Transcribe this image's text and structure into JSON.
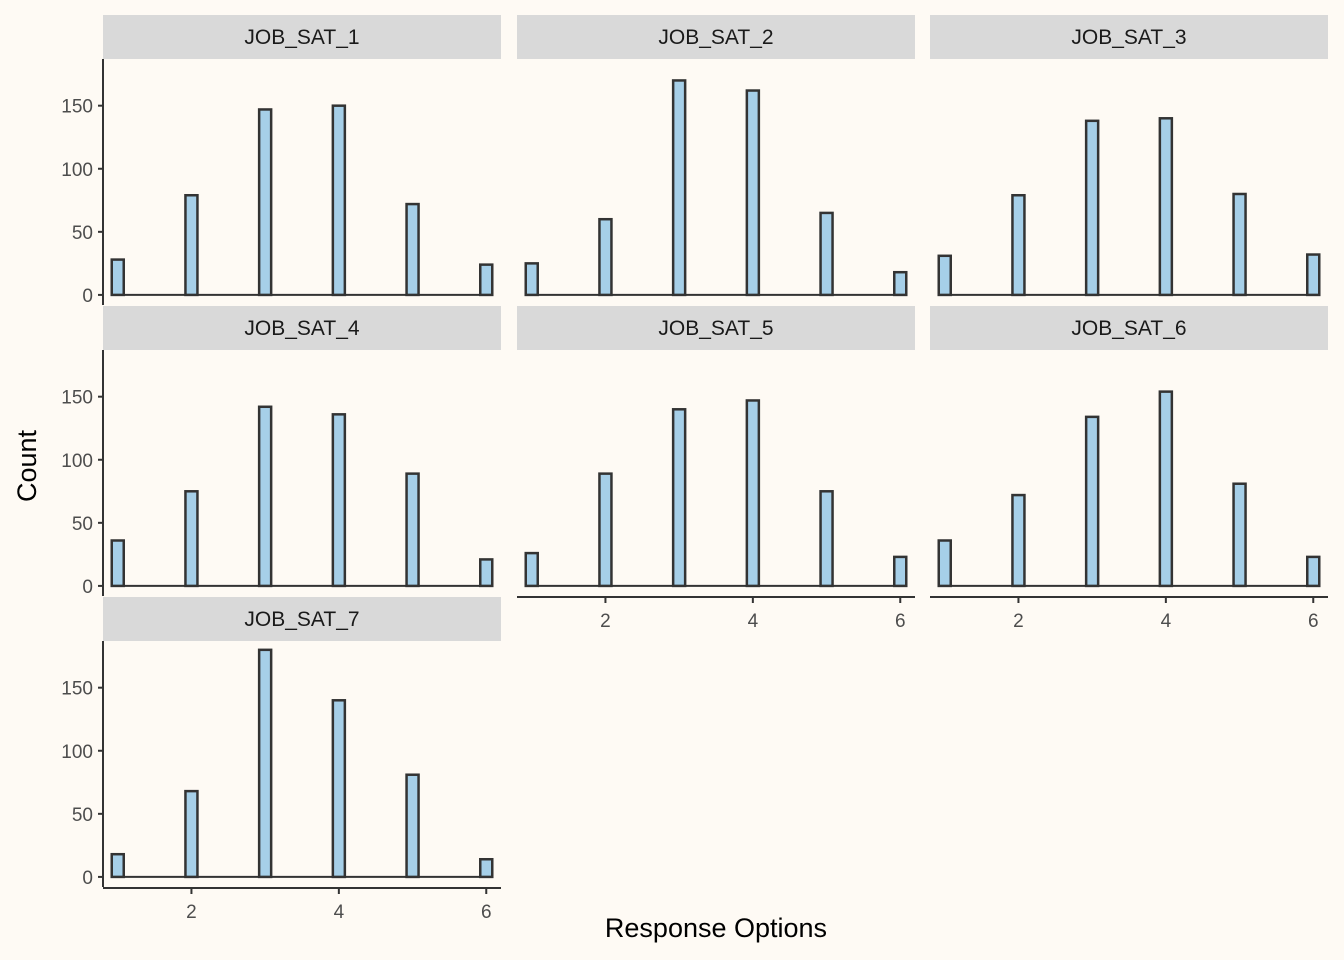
{
  "chart_data": {
    "type": "bar",
    "xlabel": "Response Options",
    "ylabel": "Count",
    "x": [
      1,
      2,
      3,
      4,
      5,
      6
    ],
    "xticks": [
      2,
      4,
      6
    ],
    "yticks": [
      0,
      50,
      100,
      150
    ],
    "xlim": [
      0.8,
      6.2
    ],
    "ylim": [
      -8,
      187
    ],
    "grid": false,
    "colors": {
      "background": "#FEFAF4",
      "bar_fill": "#A6CFE8",
      "bar_stroke": "#333333",
      "strip": "#D9D9D9",
      "axis": "#333333"
    },
    "panels": [
      {
        "name": "JOB_SAT_1",
        "values": [
          28,
          79,
          147,
          150,
          72,
          24
        ]
      },
      {
        "name": "JOB_SAT_2",
        "values": [
          25,
          60,
          170,
          162,
          65,
          18
        ]
      },
      {
        "name": "JOB_SAT_3",
        "values": [
          31,
          79,
          138,
          140,
          80,
          32
        ]
      },
      {
        "name": "JOB_SAT_4",
        "values": [
          36,
          75,
          142,
          136,
          89,
          21
        ]
      },
      {
        "name": "JOB_SAT_5",
        "values": [
          26,
          89,
          140,
          147,
          75,
          23
        ]
      },
      {
        "name": "JOB_SAT_6",
        "values": [
          36,
          72,
          134,
          154,
          81,
          23
        ]
      },
      {
        "name": "JOB_SAT_7",
        "values": [
          18,
          68,
          180,
          140,
          81,
          14
        ]
      }
    ]
  }
}
